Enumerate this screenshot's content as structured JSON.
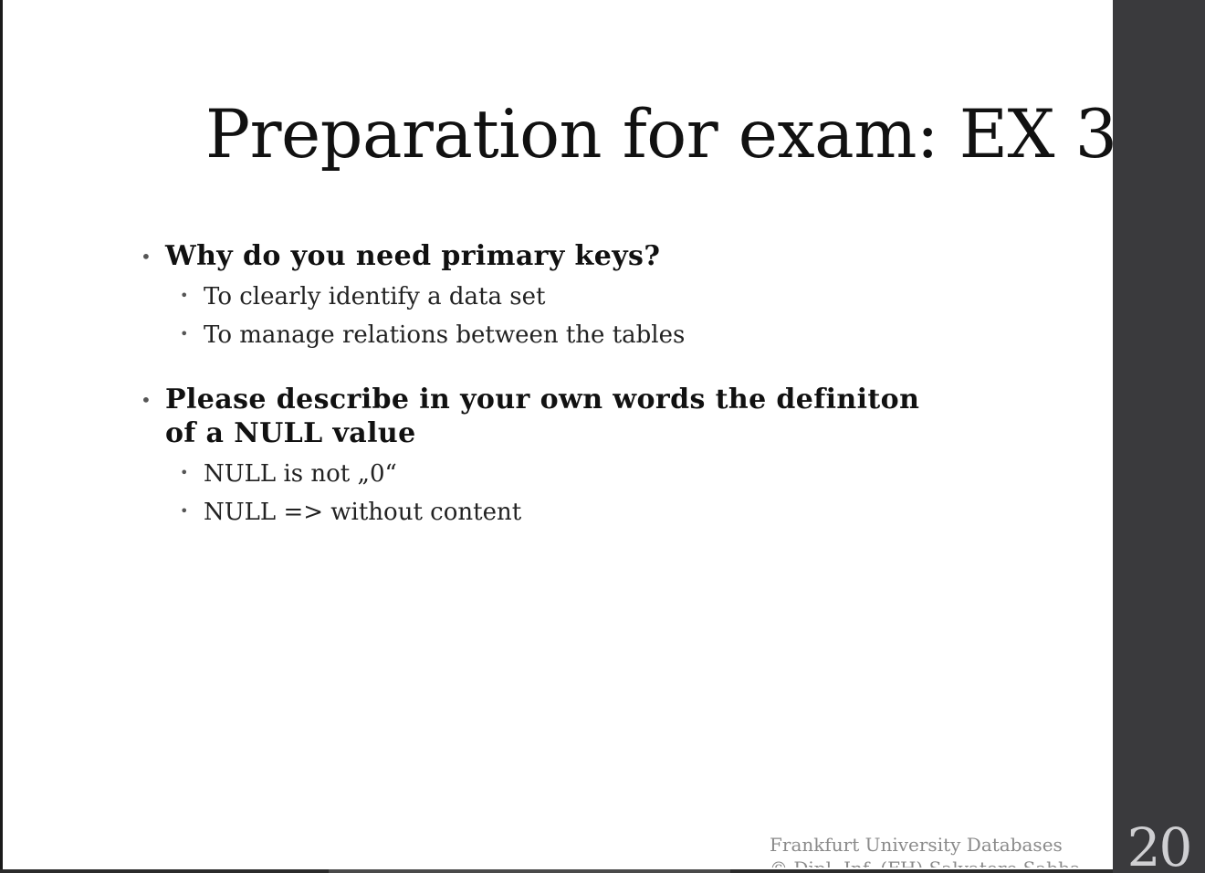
{
  "slide": {
    "title": "Preparation for exam: EX 3",
    "bullets": [
      {
        "text": "Why do you need primary keys?",
        "subitems": [
          "To clearly identify a data set",
          "To manage relations between the tables"
        ]
      },
      {
        "text_line1": "Please describe in your own words the definiton",
        "text_line2": "of a NULL value",
        "subitems": [
          "NULL is not „0“",
          "NULL => without content"
        ]
      }
    ],
    "bullet_glyph": "•",
    "footer": {
      "line1": "Frankfurt University Databases",
      "line2": "© Dipl.-Inf. (FH) Salvatore Sabba"
    }
  },
  "sidebar": {
    "page_number": "20"
  },
  "colors": {
    "background": "#ffffff",
    "text": "#111111",
    "footer_text": "#8a8a8a",
    "sidebar": "#3a3a3d",
    "page_number": "#cfcfd2"
  }
}
